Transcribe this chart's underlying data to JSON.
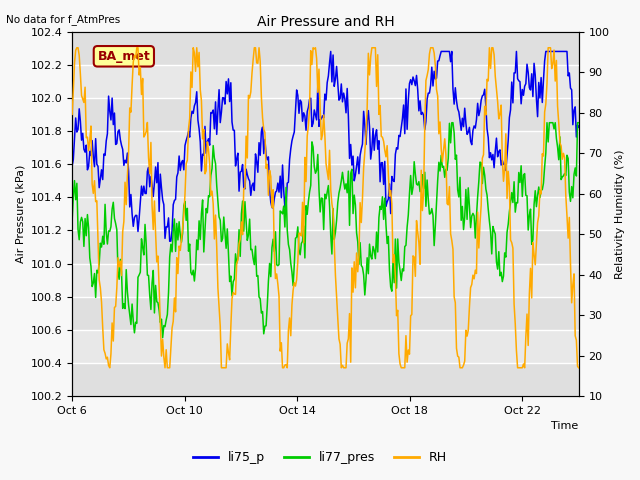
{
  "title": "Air Pressure and RH",
  "top_left_text": "No data for f_AtmPres",
  "xlabel": "Time",
  "ylabel_left": "Air Pressure (kPa)",
  "ylabel_right": "Relativity Humidity (%)",
  "legend_labels": [
    "li75_p",
    "li77_pres",
    "RH"
  ],
  "legend_colors": [
    "#0000ee",
    "#00cc00",
    "#ffaa00"
  ],
  "box_label": "BA_met",
  "box_color": "#990000",
  "box_bg": "#ffff99",
  "ylim_left": [
    100.2,
    102.4
  ],
  "ylim_right": [
    10,
    100
  ],
  "yticks_left": [
    100.2,
    100.4,
    100.6,
    100.8,
    101.0,
    101.2,
    101.4,
    101.6,
    101.8,
    102.0,
    102.2,
    102.4
  ],
  "yticks_right": [
    10,
    20,
    30,
    40,
    50,
    60,
    70,
    80,
    90,
    100
  ],
  "xtick_positions": [
    0,
    4,
    8,
    12,
    16
  ],
  "xtick_labels": [
    "Oct 6",
    "Oct 10",
    "Oct 14",
    "Oct 18",
    "Oct 22"
  ],
  "xlim": [
    0,
    18
  ],
  "fig_bg": "#f8f8f8",
  "plot_bg": "#e8e8e8",
  "grid_color": "#ffffff",
  "figsize": [
    6.4,
    4.8
  ],
  "dpi": 100
}
